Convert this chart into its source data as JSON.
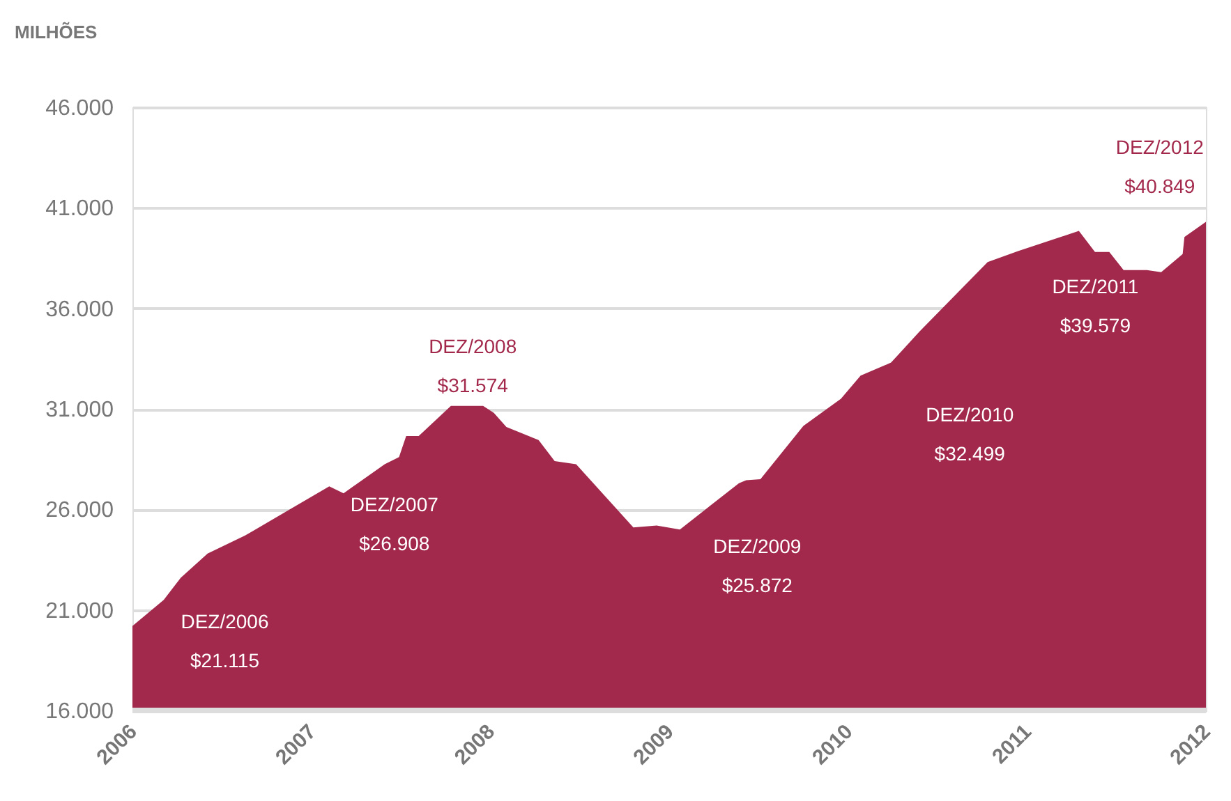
{
  "chart_data": {
    "type": "area",
    "ylabel": "MILHÕES",
    "x": [
      2006.0,
      2006.175,
      2006.27,
      2006.42,
      2006.63,
      2006.88,
      2007.1,
      2007.18,
      2007.41,
      2007.49,
      2007.53,
      2007.6,
      2007.78,
      2007.96,
      2008.02,
      2008.09,
      2008.27,
      2008.36,
      2008.48,
      2008.8,
      2008.93,
      2009.06,
      2009.39,
      2009.43,
      2009.51,
      2009.75,
      2009.96,
      2010.07,
      2010.24,
      2010.4,
      2010.78,
      2010.95,
      2011.29,
      2011.38,
      2011.46,
      2011.54,
      2011.67,
      2011.75,
      2011.87,
      2011.88,
      2012.0
    ],
    "series": [
      {
        "color": "#a3294c",
        "values": [
          20200,
          21500,
          22600,
          23800,
          24700,
          26000,
          27150,
          26800,
          28250,
          28600,
          29650,
          29650,
          31150,
          31150,
          30800,
          30100,
          29450,
          28400,
          28250,
          25100,
          25200,
          25000,
          27300,
          27450,
          27500,
          30150,
          31500,
          32650,
          33300,
          34850,
          38300,
          38850,
          39850,
          38800,
          38800,
          37900,
          37900,
          37800,
          38700,
          39550,
          40300
        ]
      }
    ],
    "xlim": [
      2006,
      2012
    ],
    "xticks": [
      2006,
      2007,
      2008,
      2009,
      2010,
      2011,
      2012
    ],
    "ylim": [
      16000,
      46000
    ],
    "yticks": [
      {
        "value": 16000,
        "label": "16.000"
      },
      {
        "value": 21000,
        "label": "21.000"
      },
      {
        "value": 26000,
        "label": "26.000"
      },
      {
        "value": 31000,
        "label": "31.000"
      },
      {
        "value": 36000,
        "label": "36.000"
      },
      {
        "value": 41000,
        "label": "41.000"
      },
      {
        "value": 46000,
        "label": "46.000"
      }
    ],
    "grid": "y",
    "annotations": [
      "DEZ/2006\n$21.115",
      "DEZ/2007\n$26.908",
      "DEZ/2008\n$31.574",
      "DEZ/2009\n$25.872",
      "DEZ/2010\n$32.499",
      "DEZ/2011\n$39.579",
      "DEZ/2012\n$40.849"
    ]
  }
}
